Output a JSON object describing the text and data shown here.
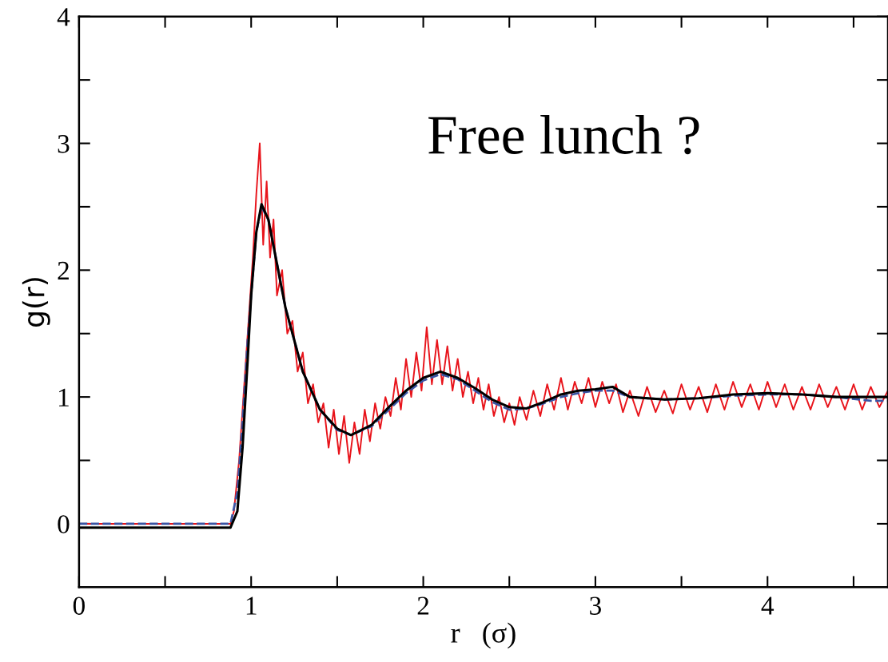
{
  "chart_data": {
    "type": "line",
    "xlabel": "r   (σ)",
    "ylabel": "g(r)",
    "annotations": [
      "Free lunch ?"
    ],
    "xlim": [
      0,
      4.7
    ],
    "ylim": [
      -0.5,
      4
    ],
    "xticks": [
      0,
      {
        "value": 0.5,
        "label": null
      },
      1,
      {
        "value": 1.5,
        "label": null
      },
      2,
      {
        "value": 2.5,
        "label": null
      },
      3,
      {
        "value": 3.5,
        "label": null
      },
      4,
      {
        "value": 4.5,
        "label": null
      }
    ],
    "yticks": [
      0,
      {
        "value": 0.5,
        "label": null
      },
      1,
      {
        "value": 1.5,
        "label": null
      },
      2,
      {
        "value": 2.5,
        "label": null
      },
      3,
      {
        "value": 3.5,
        "label": null
      },
      4
    ],
    "grid": false,
    "legend": false,
    "marker": "none",
    "series": [
      {
        "color": "#e8141b",
        "line_style": "solid",
        "x": [
          0,
          0.88,
          0.9,
          0.93,
          0.96,
          0.99,
          1.01,
          1.03,
          1.05,
          1.07,
          1.09,
          1.11,
          1.13,
          1.15,
          1.18,
          1.21,
          1.24,
          1.27,
          1.3,
          1.33,
          1.36,
          1.39,
          1.42,
          1.45,
          1.48,
          1.51,
          1.54,
          1.57,
          1.6,
          1.63,
          1.66,
          1.69,
          1.72,
          1.75,
          1.78,
          1.81,
          1.84,
          1.87,
          1.9,
          1.93,
          1.96,
          1.99,
          2.02,
          2.05,
          2.08,
          2.11,
          2.14,
          2.17,
          2.2,
          2.23,
          2.26,
          2.29,
          2.32,
          2.35,
          2.38,
          2.41,
          2.44,
          2.47,
          2.5,
          2.53,
          2.56,
          2.6,
          2.64,
          2.68,
          2.72,
          2.76,
          2.8,
          2.84,
          2.88,
          2.92,
          2.96,
          3.0,
          3.04,
          3.08,
          3.12,
          3.16,
          3.2,
          3.25,
          3.3,
          3.35,
          3.4,
          3.45,
          3.5,
          3.55,
          3.6,
          3.65,
          3.7,
          3.75,
          3.8,
          3.85,
          3.9,
          3.95,
          4.0,
          4.05,
          4.1,
          4.15,
          4.2,
          4.25,
          4.3,
          4.35,
          4.4,
          4.45,
          4.5,
          4.55,
          4.6,
          4.65,
          4.7
        ],
        "values": [
          0,
          0,
          0.1,
          0.5,
          1.1,
          1.7,
          2.1,
          2.6,
          3.0,
          2.2,
          2.7,
          2.1,
          2.4,
          1.8,
          2.0,
          1.5,
          1.6,
          1.2,
          1.35,
          0.95,
          1.1,
          0.8,
          0.95,
          0.6,
          0.9,
          0.55,
          0.85,
          0.48,
          0.8,
          0.55,
          0.9,
          0.65,
          0.95,
          0.75,
          1.0,
          0.85,
          1.15,
          0.9,
          1.3,
          1.0,
          1.35,
          1.05,
          1.55,
          1.1,
          1.45,
          1.1,
          1.4,
          1.05,
          1.3,
          1.0,
          1.2,
          0.95,
          1.15,
          0.9,
          1.1,
          0.85,
          1.0,
          0.8,
          0.95,
          0.78,
          1.0,
          0.82,
          1.05,
          0.85,
          1.1,
          0.9,
          1.15,
          0.9,
          1.12,
          0.95,
          1.15,
          0.92,
          1.12,
          0.95,
          1.1,
          0.88,
          1.05,
          0.85,
          1.08,
          0.88,
          1.05,
          0.87,
          1.1,
          0.9,
          1.08,
          0.88,
          1.1,
          0.9,
          1.12,
          0.92,
          1.1,
          0.9,
          1.12,
          0.92,
          1.1,
          0.9,
          1.08,
          0.9,
          1.1,
          0.92,
          1.08,
          0.9,
          1.1,
          0.9,
          1.08,
          0.92,
          1.05
        ]
      },
      {
        "color": "#3a55a4",
        "line_style": "dashed",
        "x": [
          0,
          0.88,
          0.92,
          0.95,
          0.98,
          1.0,
          1.03,
          1.06,
          1.1,
          1.15,
          1.2,
          1.3,
          1.4,
          1.5,
          1.58,
          1.7,
          1.8,
          1.9,
          2.0,
          2.1,
          2.2,
          2.3,
          2.4,
          2.5,
          2.6,
          2.7,
          2.8,
          2.9,
          3.0,
          3.1,
          3.2,
          3.4,
          3.6,
          3.8,
          4.0,
          4.2,
          4.4,
          4.6,
          4.7
        ],
        "values": [
          0.0,
          0.0,
          0.25,
          0.8,
          1.45,
          1.8,
          2.3,
          2.5,
          2.4,
          2.05,
          1.7,
          1.2,
          0.9,
          0.74,
          0.7,
          0.77,
          0.9,
          1.03,
          1.13,
          1.18,
          1.14,
          1.05,
          0.96,
          0.9,
          0.91,
          0.95,
          1.0,
          1.03,
          1.05,
          1.05,
          1.0,
          0.98,
          0.99,
          1.01,
          1.02,
          1.02,
          1.0,
          0.97,
          0.97
        ]
      },
      {
        "color": "#000000",
        "line_style": "solid",
        "x": [
          0,
          0.88,
          0.92,
          0.95,
          0.98,
          1.0,
          1.03,
          1.06,
          1.1,
          1.15,
          1.2,
          1.3,
          1.4,
          1.5,
          1.58,
          1.7,
          1.8,
          1.9,
          2.0,
          2.1,
          2.2,
          2.3,
          2.4,
          2.5,
          2.6,
          2.7,
          2.8,
          2.9,
          3.0,
          3.1,
          3.2,
          3.4,
          3.6,
          3.8,
          4.0,
          4.2,
          4.4,
          4.6,
          4.7
        ],
        "values": [
          -0.03,
          -0.03,
          0.1,
          0.6,
          1.3,
          1.8,
          2.3,
          2.52,
          2.4,
          2.05,
          1.7,
          1.2,
          0.9,
          0.75,
          0.7,
          0.78,
          0.92,
          1.05,
          1.15,
          1.2,
          1.15,
          1.07,
          0.98,
          0.92,
          0.91,
          0.96,
          1.02,
          1.05,
          1.06,
          1.08,
          1.0,
          0.98,
          0.99,
          1.02,
          1.03,
          1.02,
          1.0,
          1.0,
          1.0
        ]
      }
    ]
  }
}
